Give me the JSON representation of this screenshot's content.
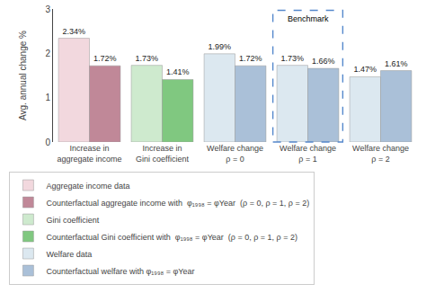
{
  "chart_data": {
    "type": "bar",
    "categories": [
      "Increase in\naggregate income",
      "Increase in\nGini coefficient",
      "Welfare change\nρ = 0",
      "Welfare change\nρ = 1",
      "Welfare change\nρ = 2"
    ],
    "series": [
      {
        "name": "Aggregate income data",
        "color": "#f2d8de",
        "values": [
          2.34,
          null,
          null,
          null,
          null
        ],
        "value_labels": [
          "2.34%",
          null,
          null,
          null,
          null
        ]
      },
      {
        "name": "Counterfactual aggregate income with  φ₁₉₉₈ = φYear  (ρ = 0, ρ = 1, ρ = 2)",
        "color": "#c08898",
        "values": [
          1.72,
          null,
          null,
          null,
          null
        ],
        "value_labels": [
          "1.72%",
          null,
          null,
          null,
          null
        ]
      },
      {
        "name": "Gini coefficient",
        "color": "#ceeace",
        "values": [
          null,
          1.73,
          null,
          null,
          null
        ],
        "value_labels": [
          null,
          "1.73%",
          null,
          null,
          null
        ]
      },
      {
        "name": "Counterfactual Gini coefficient with  φ₁₉₉₈ = φYear  (ρ = 0, ρ = 1, ρ = 2)",
        "color": "#80c880",
        "values": [
          null,
          1.41,
          null,
          null,
          null
        ],
        "value_labels": [
          null,
          "1.41%",
          null,
          null,
          null
        ]
      },
      {
        "name": "Welfare data",
        "color": "#dce8f0",
        "values": [
          null,
          null,
          1.99,
          1.73,
          1.47
        ],
        "value_labels": [
          null,
          null,
          "1.99%",
          "1.73%",
          "1.47%"
        ]
      },
      {
        "name": "Counterfactual welfare with φ₁₉₉₈ = φYear",
        "color": "#aac0d8",
        "values": [
          null,
          null,
          1.72,
          1.66,
          1.61
        ],
        "value_labels": [
          null,
          null,
          "1.72%",
          "1.66%",
          "1.61%"
        ]
      }
    ],
    "ylabel": "Avg. annual change %",
    "ylim": [
      0,
      3
    ],
    "yticks": [
      0,
      1,
      2,
      3
    ],
    "grid": false,
    "legend": "bottom",
    "data_labels": true,
    "annotations": [
      {
        "text": "Benchmark",
        "category": "Welfare change\nρ = 1",
        "color": "#5588cc"
      }
    ]
  }
}
